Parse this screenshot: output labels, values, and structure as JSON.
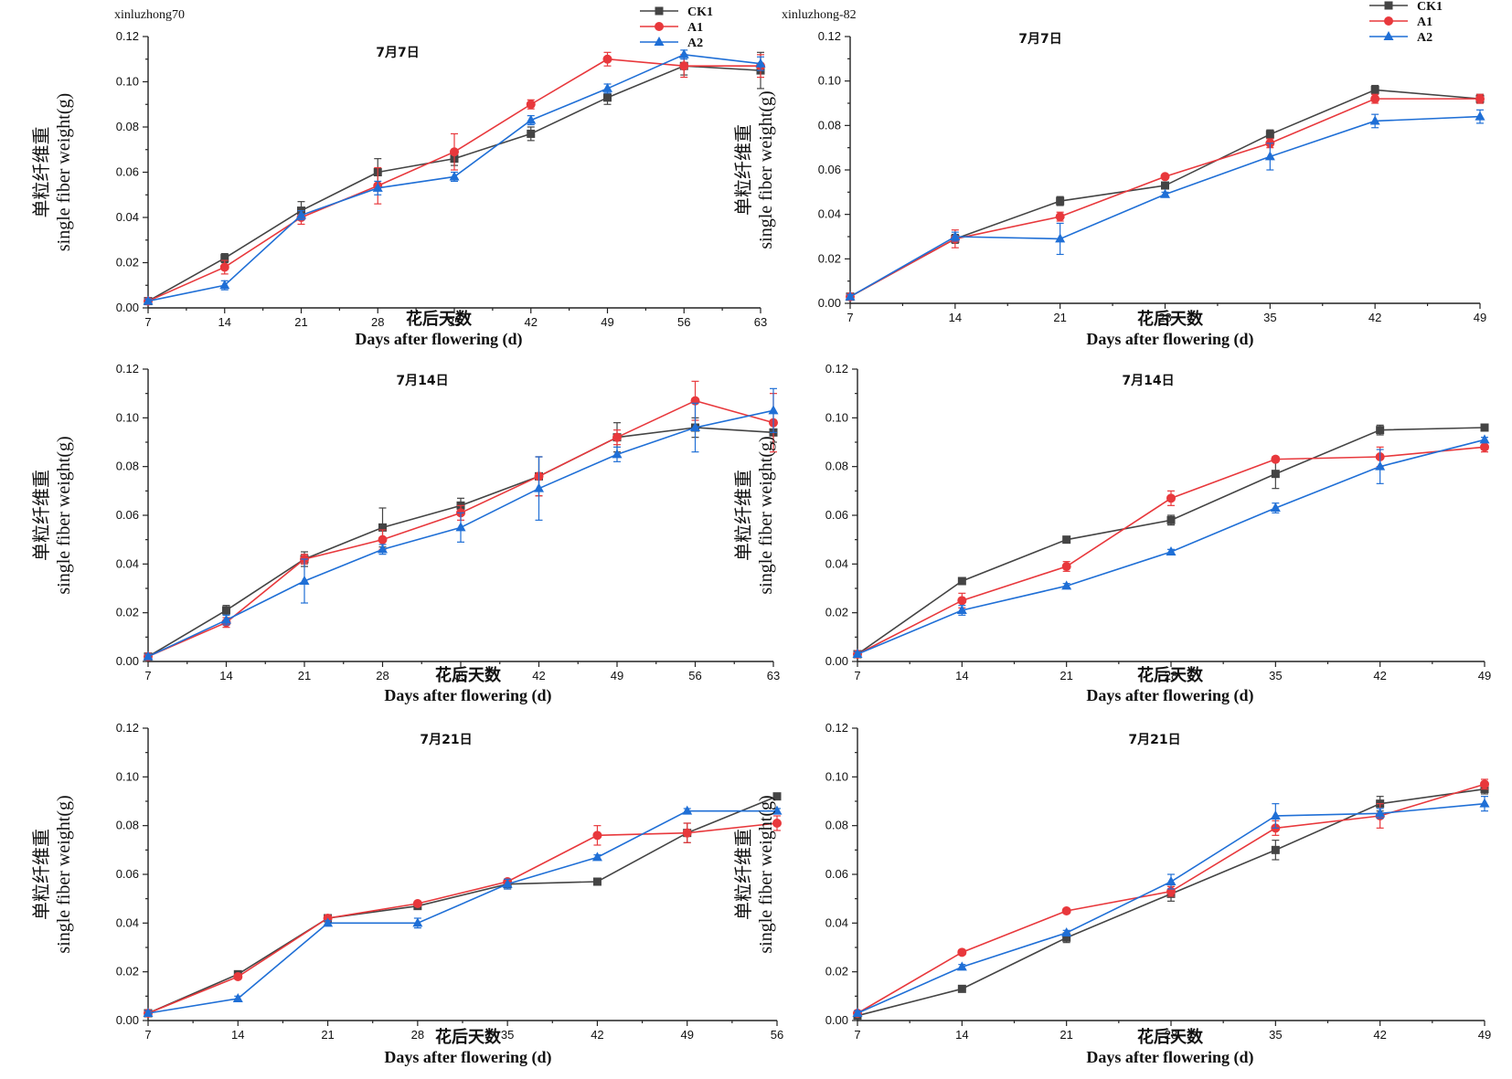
{
  "colors": {
    "CK1": "#444444",
    "A1": "#e8383c",
    "A2": "#1f6fd6"
  },
  "legend_labels": [
    "CK1",
    "A1",
    "A2"
  ],
  "chart_data": [
    {
      "type": "line",
      "variety": "xinluzhong70",
      "subtitle": "7月7日",
      "ylabel_cn": "单粒纤维重",
      "ylabel_en": "single fiber weight(g)",
      "xlabel_cn": "花后天数",
      "xlabel_en": "Days after flowering (d)",
      "x": [
        7,
        14,
        21,
        28,
        35,
        42,
        49,
        56,
        63
      ],
      "ylim": [
        0,
        0.12
      ],
      "yticks": [
        "0.00",
        "0.02",
        "0.04",
        "0.06",
        "0.08",
        "0.10",
        "0.12"
      ],
      "show_legend": true,
      "series": [
        {
          "name": "CK1",
          "values": [
            0.003,
            0.022,
            0.043,
            0.06,
            0.066,
            0.077,
            0.093,
            0.107,
            0.105
          ],
          "err": [
            0.001,
            0.002,
            0.004,
            0.006,
            0.003,
            0.003,
            0.003,
            0.004,
            0.008
          ]
        },
        {
          "name": "A1",
          "values": [
            0.003,
            0.018,
            0.04,
            0.054,
            0.069,
            0.09,
            0.11,
            0.107,
            0.107
          ],
          "err": [
            0.001,
            0.003,
            0.003,
            0.008,
            0.008,
            0.002,
            0.003,
            0.005,
            0.005
          ]
        },
        {
          "name": "A2",
          "values": [
            0.003,
            0.01,
            0.041,
            0.053,
            0.058,
            0.083,
            0.097,
            0.112,
            0.108
          ],
          "err": [
            0.001,
            0.002,
            0.002,
            0.003,
            0.002,
            0.002,
            0.002,
            0.002,
            0.003
          ]
        }
      ]
    },
    {
      "type": "line",
      "variety": "xinluzhong-82",
      "subtitle": "7月7日",
      "ylabel_cn": "单粒纤维重",
      "ylabel_en": "single fiber weight(g)",
      "xlabel_cn": "花后天数",
      "xlabel_en": "Days after flowering (d)",
      "x": [
        7,
        14,
        21,
        28,
        35,
        42,
        49
      ],
      "ylim": [
        0,
        0.12
      ],
      "yticks": [
        "0.00",
        "0.02",
        "0.04",
        "0.06",
        "0.08",
        "0.10",
        "0.12"
      ],
      "show_legend": true,
      "series": [
        {
          "name": "CK1",
          "values": [
            0.003,
            0.029,
            0.046,
            0.053,
            0.076,
            0.096,
            0.092
          ],
          "err": [
            0.001,
            0.002,
            0.002,
            0.001,
            0.002,
            0.002,
            0.002
          ]
        },
        {
          "name": "A1",
          "values": [
            0.003,
            0.029,
            0.039,
            0.057,
            0.072,
            0.092,
            0.092
          ],
          "err": [
            0.001,
            0.004,
            0.002,
            0.001,
            0.002,
            0.002,
            0.002
          ]
        },
        {
          "name": "A2",
          "values": [
            0.003,
            0.03,
            0.029,
            0.049,
            0.066,
            0.082,
            0.084
          ],
          "err": [
            0.001,
            0.002,
            0.007,
            0.001,
            0.006,
            0.003,
            0.003
          ]
        }
      ]
    },
    {
      "type": "line",
      "variety": "",
      "subtitle": "7月14日",
      "ylabel_cn": "单粒纤维重",
      "ylabel_en": "single fiber weight(g)",
      "xlabel_cn": "花后天数",
      "xlabel_en": "Days after flowering (d)",
      "x": [
        7,
        14,
        21,
        28,
        35,
        42,
        49,
        56,
        63
      ],
      "ylim": [
        0,
        0.12
      ],
      "yticks": [
        "0.00",
        "0.02",
        "0.04",
        "0.06",
        "0.08",
        "0.10",
        "0.12"
      ],
      "show_legend": false,
      "series": [
        {
          "name": "CK1",
          "values": [
            0.002,
            0.021,
            0.042,
            0.055,
            0.064,
            0.076,
            0.092,
            0.096,
            0.094
          ],
          "err": [
            0.001,
            0.002,
            0.003,
            0.008,
            0.003,
            0.008,
            0.006,
            0.004,
            0.004
          ]
        },
        {
          "name": "A1",
          "values": [
            0.002,
            0.016,
            0.042,
            0.05,
            0.061,
            0.076,
            0.092,
            0.107,
            0.098
          ],
          "err": [
            0.001,
            0.002,
            0.002,
            0.004,
            0.003,
            0.008,
            0.003,
            0.008,
            0.012
          ]
        },
        {
          "name": "A2",
          "values": [
            0.002,
            0.017,
            0.033,
            0.046,
            0.055,
            0.071,
            0.085,
            0.096,
            0.103
          ],
          "err": [
            0.001,
            0.002,
            0.009,
            0.002,
            0.006,
            0.013,
            0.003,
            0.01,
            0.009
          ]
        }
      ]
    },
    {
      "type": "line",
      "variety": "",
      "subtitle": "7月14日",
      "ylabel_cn": "单粒纤维重",
      "ylabel_en": "single fiber weight(g)",
      "xlabel_cn": "花后天数",
      "xlabel_en": "Days after flowering (d)",
      "x": [
        7,
        14,
        21,
        28,
        35,
        42,
        49
      ],
      "ylim": [
        0,
        0.12
      ],
      "yticks": [
        "0.00",
        "0.02",
        "0.04",
        "0.06",
        "0.08",
        "0.10",
        "0.12"
      ],
      "show_legend": false,
      "series": [
        {
          "name": "CK1",
          "values": [
            0.003,
            0.033,
            0.05,
            0.058,
            0.077,
            0.095,
            0.096
          ],
          "err": [
            0.001,
            0.001,
            0.001,
            0.002,
            0.006,
            0.002,
            0.001
          ]
        },
        {
          "name": "A1",
          "values": [
            0.003,
            0.025,
            0.039,
            0.067,
            0.083,
            0.084,
            0.088
          ],
          "err": [
            0.001,
            0.003,
            0.002,
            0.003,
            0.001,
            0.004,
            0.002
          ]
        },
        {
          "name": "A2",
          "values": [
            0.003,
            0.021,
            0.031,
            0.045,
            0.063,
            0.08,
            0.091
          ],
          "err": [
            0.001,
            0.002,
            0.001,
            0.001,
            0.002,
            0.007,
            0.001
          ]
        }
      ]
    },
    {
      "type": "line",
      "variety": "",
      "subtitle": "7月21日",
      "ylabel_cn": "单粒纤维重",
      "ylabel_en": "single fiber weight(g)",
      "xlabel_cn": "花后天数",
      "xlabel_en": "Days after flowering (d)",
      "x": [
        7,
        14,
        21,
        28,
        35,
        42,
        49,
        56
      ],
      "ylim": [
        0,
        0.12
      ],
      "yticks": [
        "0.00",
        "0.02",
        "0.04",
        "0.06",
        "0.08",
        "0.10",
        "0.12"
      ],
      "show_legend": false,
      "series": [
        {
          "name": "CK1",
          "values": [
            0.003,
            0.019,
            0.042,
            0.047,
            0.056,
            0.057,
            0.077,
            0.092
          ],
          "err": [
            0.001,
            0.001,
            0.001,
            0.001,
            0.002,
            0.001,
            0.004,
            0.001
          ]
        },
        {
          "name": "A1",
          "values": [
            0.003,
            0.018,
            0.042,
            0.048,
            0.057,
            0.076,
            0.077,
            0.081
          ],
          "err": [
            0.001,
            0.001,
            0.001,
            0.001,
            0.001,
            0.004,
            0.004,
            0.003
          ]
        },
        {
          "name": "A2",
          "values": [
            0.003,
            0.009,
            0.04,
            0.04,
            0.056,
            0.067,
            0.086,
            0.086
          ],
          "err": [
            0.001,
            0.001,
            0.001,
            0.002,
            0.002,
            0.001,
            0.001,
            0.001
          ]
        }
      ]
    },
    {
      "type": "line",
      "variety": "",
      "subtitle": "7月21日",
      "ylabel_cn": "单粒纤维重",
      "ylabel_en": "single fiber weight(g)",
      "xlabel_cn": "花后天数",
      "xlabel_en": "Days after flowering (d)",
      "x": [
        7,
        14,
        21,
        28,
        35,
        42,
        49
      ],
      "ylim": [
        0,
        0.12
      ],
      "yticks": [
        "0.00",
        "0.02",
        "0.04",
        "0.06",
        "0.08",
        "0.10",
        "0.12"
      ],
      "show_legend": false,
      "series": [
        {
          "name": "CK1",
          "values": [
            0.002,
            0.013,
            0.034,
            0.052,
            0.07,
            0.089,
            0.095
          ],
          "err": [
            0.001,
            0.001,
            0.002,
            0.003,
            0.004,
            0.003,
            0.002
          ]
        },
        {
          "name": "A1",
          "values": [
            0.003,
            0.028,
            0.045,
            0.053,
            0.079,
            0.084,
            0.097
          ],
          "err": [
            0.001,
            0.001,
            0.001,
            0.002,
            0.003,
            0.005,
            0.002
          ]
        },
        {
          "name": "A2",
          "values": [
            0.003,
            0.022,
            0.036,
            0.057,
            0.084,
            0.085,
            0.089
          ],
          "err": [
            0.001,
            0.001,
            0.001,
            0.003,
            0.005,
            0.002,
            0.003
          ]
        }
      ]
    }
  ]
}
